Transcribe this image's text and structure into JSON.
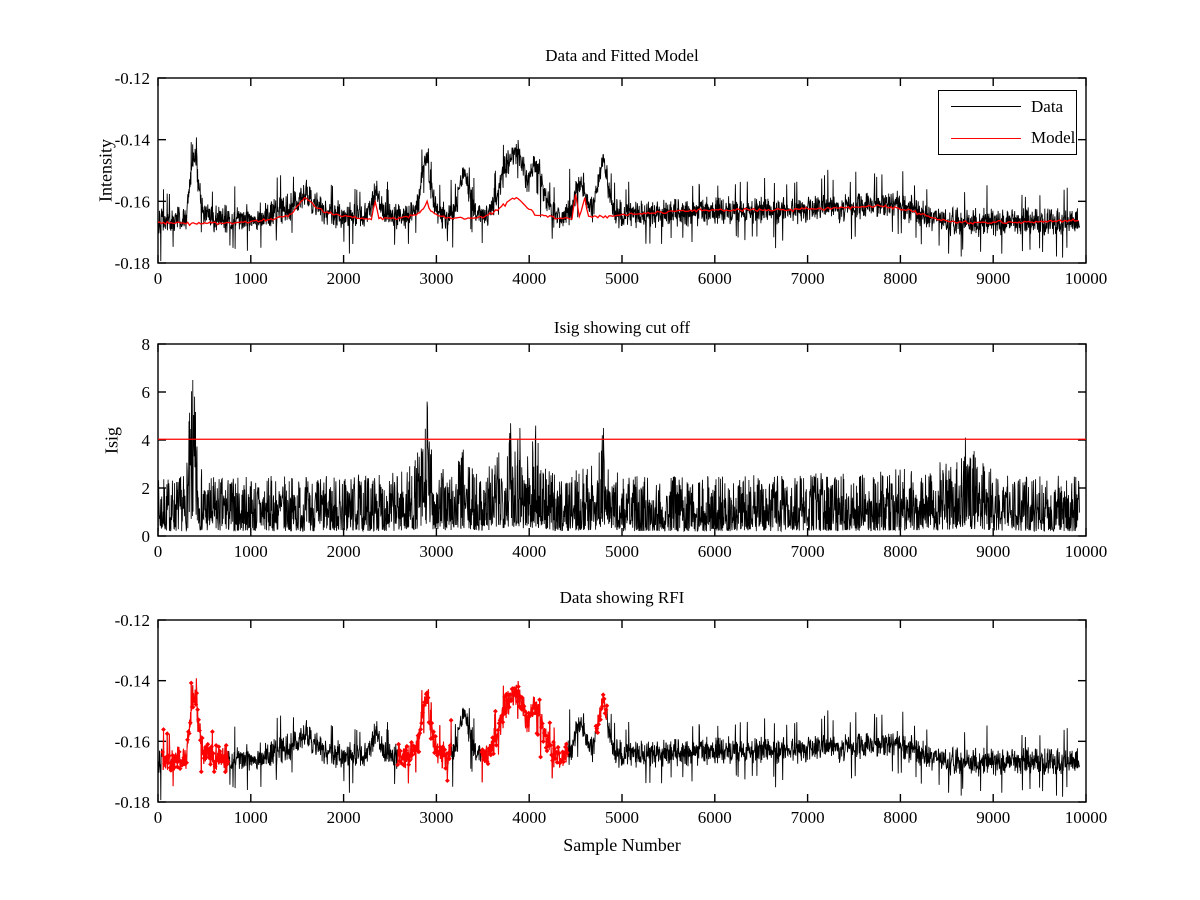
{
  "figure": {
    "background": "#ffffff",
    "data_color": "#000000",
    "model_color": "#ff0000"
  },
  "chart_data": [
    {
      "type": "line",
      "title": "Data and Fitted Model",
      "ylabel": "Intensity",
      "xlim": [
        0,
        10000
      ],
      "ylim": [
        -0.18,
        -0.12
      ],
      "xticks": [
        0,
        1000,
        2000,
        3000,
        4000,
        5000,
        6000,
        7000,
        8000,
        9000,
        10000
      ],
      "yticks": [
        -0.18,
        -0.16,
        -0.14,
        -0.12
      ],
      "ytick_labels": [
        "-0.18",
        "-0.16",
        "-0.14",
        "-0.12"
      ],
      "grid": false,
      "legend": {
        "position": "top-right",
        "entries": [
          {
            "label": "Data",
            "color": "#000000"
          },
          {
            "label": "Model",
            "color": "#ff0000"
          }
        ]
      },
      "series": [
        {
          "name": "Data",
          "color": "#000000",
          "style": "noisy-line",
          "noise_std": 0.0024,
          "x_end": 9930,
          "center_keypoints": [
            [
              0,
              -0.166
            ],
            [
              300,
              -0.166
            ],
            [
              345,
              -0.154
            ],
            [
              380,
              -0.1445
            ],
            [
              405,
              -0.1445
            ],
            [
              440,
              -0.156
            ],
            [
              480,
              -0.1635
            ],
            [
              600,
              -0.166
            ],
            [
              900,
              -0.1658
            ],
            [
              1150,
              -0.165
            ],
            [
              1350,
              -0.163
            ],
            [
              1500,
              -0.1605
            ],
            [
              1600,
              -0.1575
            ],
            [
              1680,
              -0.161
            ],
            [
              1800,
              -0.1635
            ],
            [
              2000,
              -0.1648
            ],
            [
              2200,
              -0.1655
            ],
            [
              2300,
              -0.162
            ],
            [
              2350,
              -0.1565
            ],
            [
              2400,
              -0.1625
            ],
            [
              2500,
              -0.1655
            ],
            [
              2700,
              -0.165
            ],
            [
              2820,
              -0.159
            ],
            [
              2870,
              -0.147
            ],
            [
              2905,
              -0.145
            ],
            [
              2940,
              -0.155
            ],
            [
              3000,
              -0.163
            ],
            [
              3100,
              -0.165
            ],
            [
              3200,
              -0.1635
            ],
            [
              3260,
              -0.154
            ],
            [
              3300,
              -0.1505
            ],
            [
              3340,
              -0.156
            ],
            [
              3420,
              -0.163
            ],
            [
              3550,
              -0.165
            ],
            [
              3650,
              -0.158
            ],
            [
              3750,
              -0.148
            ],
            [
              3820,
              -0.145
            ],
            [
              3880,
              -0.1435
            ],
            [
              3930,
              -0.148
            ],
            [
              3980,
              -0.155
            ],
            [
              4020,
              -0.151
            ],
            [
              4060,
              -0.1475
            ],
            [
              4100,
              -0.149
            ],
            [
              4160,
              -0.158
            ],
            [
              4250,
              -0.164
            ],
            [
              4350,
              -0.1655
            ],
            [
              4450,
              -0.163
            ],
            [
              4520,
              -0.156
            ],
            [
              4570,
              -0.1535
            ],
            [
              4620,
              -0.159
            ],
            [
              4680,
              -0.163
            ],
            [
              4730,
              -0.156
            ],
            [
              4780,
              -0.147
            ],
            [
              4810,
              -0.146
            ],
            [
              4850,
              -0.156
            ],
            [
              4920,
              -0.1635
            ],
            [
              5000,
              -0.1645
            ],
            [
              5300,
              -0.164
            ],
            [
              5700,
              -0.1635
            ],
            [
              6100,
              -0.163
            ],
            [
              6500,
              -0.1632
            ],
            [
              6900,
              -0.1628
            ],
            [
              7150,
              -0.1615
            ],
            [
              7350,
              -0.1625
            ],
            [
              7600,
              -0.1618
            ],
            [
              7850,
              -0.1605
            ],
            [
              8000,
              -0.1612
            ],
            [
              8150,
              -0.163
            ],
            [
              8300,
              -0.165
            ],
            [
              8500,
              -0.1665
            ],
            [
              8800,
              -0.1668
            ],
            [
              9200,
              -0.1668
            ],
            [
              9600,
              -0.1667
            ],
            [
              9930,
              -0.1665
            ]
          ],
          "peaks": [
            [
              400,
              -0.143
            ],
            [
              1600,
              -0.153
            ],
            [
              2350,
              -0.155
            ],
            [
              2900,
              -0.144
            ],
            [
              3300,
              -0.15
            ],
            [
              3870,
              -0.143
            ],
            [
              4070,
              -0.147
            ],
            [
              4560,
              -0.152
            ],
            [
              4800,
              -0.145
            ]
          ]
        },
        {
          "name": "Model",
          "color": "#ff0000",
          "style": "line",
          "x_end": 9930,
          "keypoints": [
            [
              0,
              -0.167
            ],
            [
              600,
              -0.167
            ],
            [
              900,
              -0.1668
            ],
            [
              1200,
              -0.166
            ],
            [
              1450,
              -0.1638
            ],
            [
              1570,
              -0.1592
            ],
            [
              1620,
              -0.159
            ],
            [
              1700,
              -0.162
            ],
            [
              1850,
              -0.164
            ],
            [
              2100,
              -0.1652
            ],
            [
              2300,
              -0.1658
            ],
            [
              2340,
              -0.16
            ],
            [
              2380,
              -0.1655
            ],
            [
              2600,
              -0.1655
            ],
            [
              2800,
              -0.164
            ],
            [
              2880,
              -0.1615
            ],
            [
              2900,
              -0.1595
            ],
            [
              2925,
              -0.1625
            ],
            [
              3000,
              -0.1645
            ],
            [
              3100,
              -0.1652
            ],
            [
              3300,
              -0.1655
            ],
            [
              3500,
              -0.1652
            ],
            [
              3650,
              -0.163
            ],
            [
              3800,
              -0.1595
            ],
            [
              3870,
              -0.1588
            ],
            [
              3980,
              -0.162
            ],
            [
              4080,
              -0.1645
            ],
            [
              4300,
              -0.1652
            ],
            [
              4460,
              -0.1655
            ],
            [
              4500,
              -0.158
            ],
            [
              4540,
              -0.165
            ],
            [
              4600,
              -0.159
            ],
            [
              4640,
              -0.165
            ],
            [
              4800,
              -0.165
            ],
            [
              5000,
              -0.1645
            ],
            [
              5400,
              -0.1635
            ],
            [
              5800,
              -0.163
            ],
            [
              6200,
              -0.1628
            ],
            [
              6600,
              -0.1628
            ],
            [
              7000,
              -0.1625
            ],
            [
              7400,
              -0.162
            ],
            [
              7800,
              -0.1615
            ],
            [
              8100,
              -0.163
            ],
            [
              8400,
              -0.1658
            ],
            [
              8600,
              -0.1668
            ],
            [
              9000,
              -0.1668
            ],
            [
              9400,
              -0.1667
            ],
            [
              9930,
              -0.1663
            ]
          ]
        }
      ]
    },
    {
      "type": "line",
      "title": "Isig showing cut off",
      "ylabel": "Isig",
      "xlim": [
        0,
        10000
      ],
      "ylim": [
        0,
        8
      ],
      "xticks": [
        0,
        1000,
        2000,
        3000,
        4000,
        5000,
        6000,
        7000,
        8000,
        9000,
        10000
      ],
      "yticks": [
        0,
        2,
        4,
        6,
        8
      ],
      "ytick_labels": [
        "0",
        "2",
        "4",
        "6",
        "8"
      ],
      "grid": false,
      "cutoff_line": {
        "y": 4.03,
        "color": "#ff0000"
      },
      "series": [
        {
          "name": "Isig",
          "color": "#000000",
          "style": "noisy-fill",
          "x_end": 9930,
          "envelope_keypoints": [
            [
              0,
              2.4
            ],
            [
              300,
              2.6
            ],
            [
              345,
              5.5
            ],
            [
              375,
              6.6
            ],
            [
              410,
              5.3
            ],
            [
              450,
              3.0
            ],
            [
              520,
              2.5
            ],
            [
              1500,
              2.5
            ],
            [
              2500,
              2.6
            ],
            [
              2750,
              3.0
            ],
            [
              2860,
              4.2
            ],
            [
              2900,
              5.7
            ],
            [
              2940,
              4.0
            ],
            [
              3000,
              2.8
            ],
            [
              3200,
              2.8
            ],
            [
              3270,
              3.7
            ],
            [
              3320,
              3.0
            ],
            [
              3500,
              2.7
            ],
            [
              3680,
              3.6
            ],
            [
              3780,
              4.8
            ],
            [
              3900,
              4.6
            ],
            [
              3960,
              3.4
            ],
            [
              4030,
              4.2
            ],
            [
              4080,
              4.7
            ],
            [
              4140,
              3.0
            ],
            [
              4300,
              2.5
            ],
            [
              4700,
              3.0
            ],
            [
              4780,
              4.6
            ],
            [
              4830,
              3.0
            ],
            [
              5000,
              2.5
            ],
            [
              6000,
              2.5
            ],
            [
              7000,
              2.6
            ],
            [
              8000,
              2.8
            ],
            [
              8300,
              3.1
            ],
            [
              8600,
              3.3
            ],
            [
              8700,
              4.15
            ],
            [
              8900,
              3.0
            ],
            [
              9200,
              2.6
            ],
            [
              9930,
              2.5
            ]
          ],
          "peaks": [
            [
              375,
              6.5
            ],
            [
              2900,
              5.6
            ],
            [
              3290,
              3.6
            ],
            [
              3800,
              4.7
            ],
            [
              3900,
              4.5
            ],
            [
              4070,
              4.6
            ],
            [
              4800,
              4.5
            ],
            [
              8700,
              4.1
            ]
          ]
        }
      ]
    },
    {
      "type": "line",
      "title": "Data showing RFI",
      "xlabel": "Sample Number",
      "xlim": [
        0,
        10000
      ],
      "ylim": [
        -0.18,
        -0.12
      ],
      "xticks": [
        0,
        1000,
        2000,
        3000,
        4000,
        5000,
        6000,
        7000,
        8000,
        9000,
        10000
      ],
      "yticks": [
        -0.18,
        -0.16,
        -0.14,
        -0.12
      ],
      "ytick_labels": [
        "-0.18",
        "-0.16",
        "-0.14",
        "-0.12"
      ],
      "grid": false,
      "series": [
        {
          "name": "Data",
          "color": "#000000",
          "style": "noisy-line",
          "same_as": "chart_data.0.series.0"
        }
      ],
      "rfi_regions": {
        "color": "#ff0000",
        "marker": "diamond",
        "intervals": [
          [
            40,
            760
          ],
          [
            2580,
            3160
          ],
          [
            3480,
            4420
          ],
          [
            4710,
            4840
          ]
        ]
      }
    }
  ]
}
